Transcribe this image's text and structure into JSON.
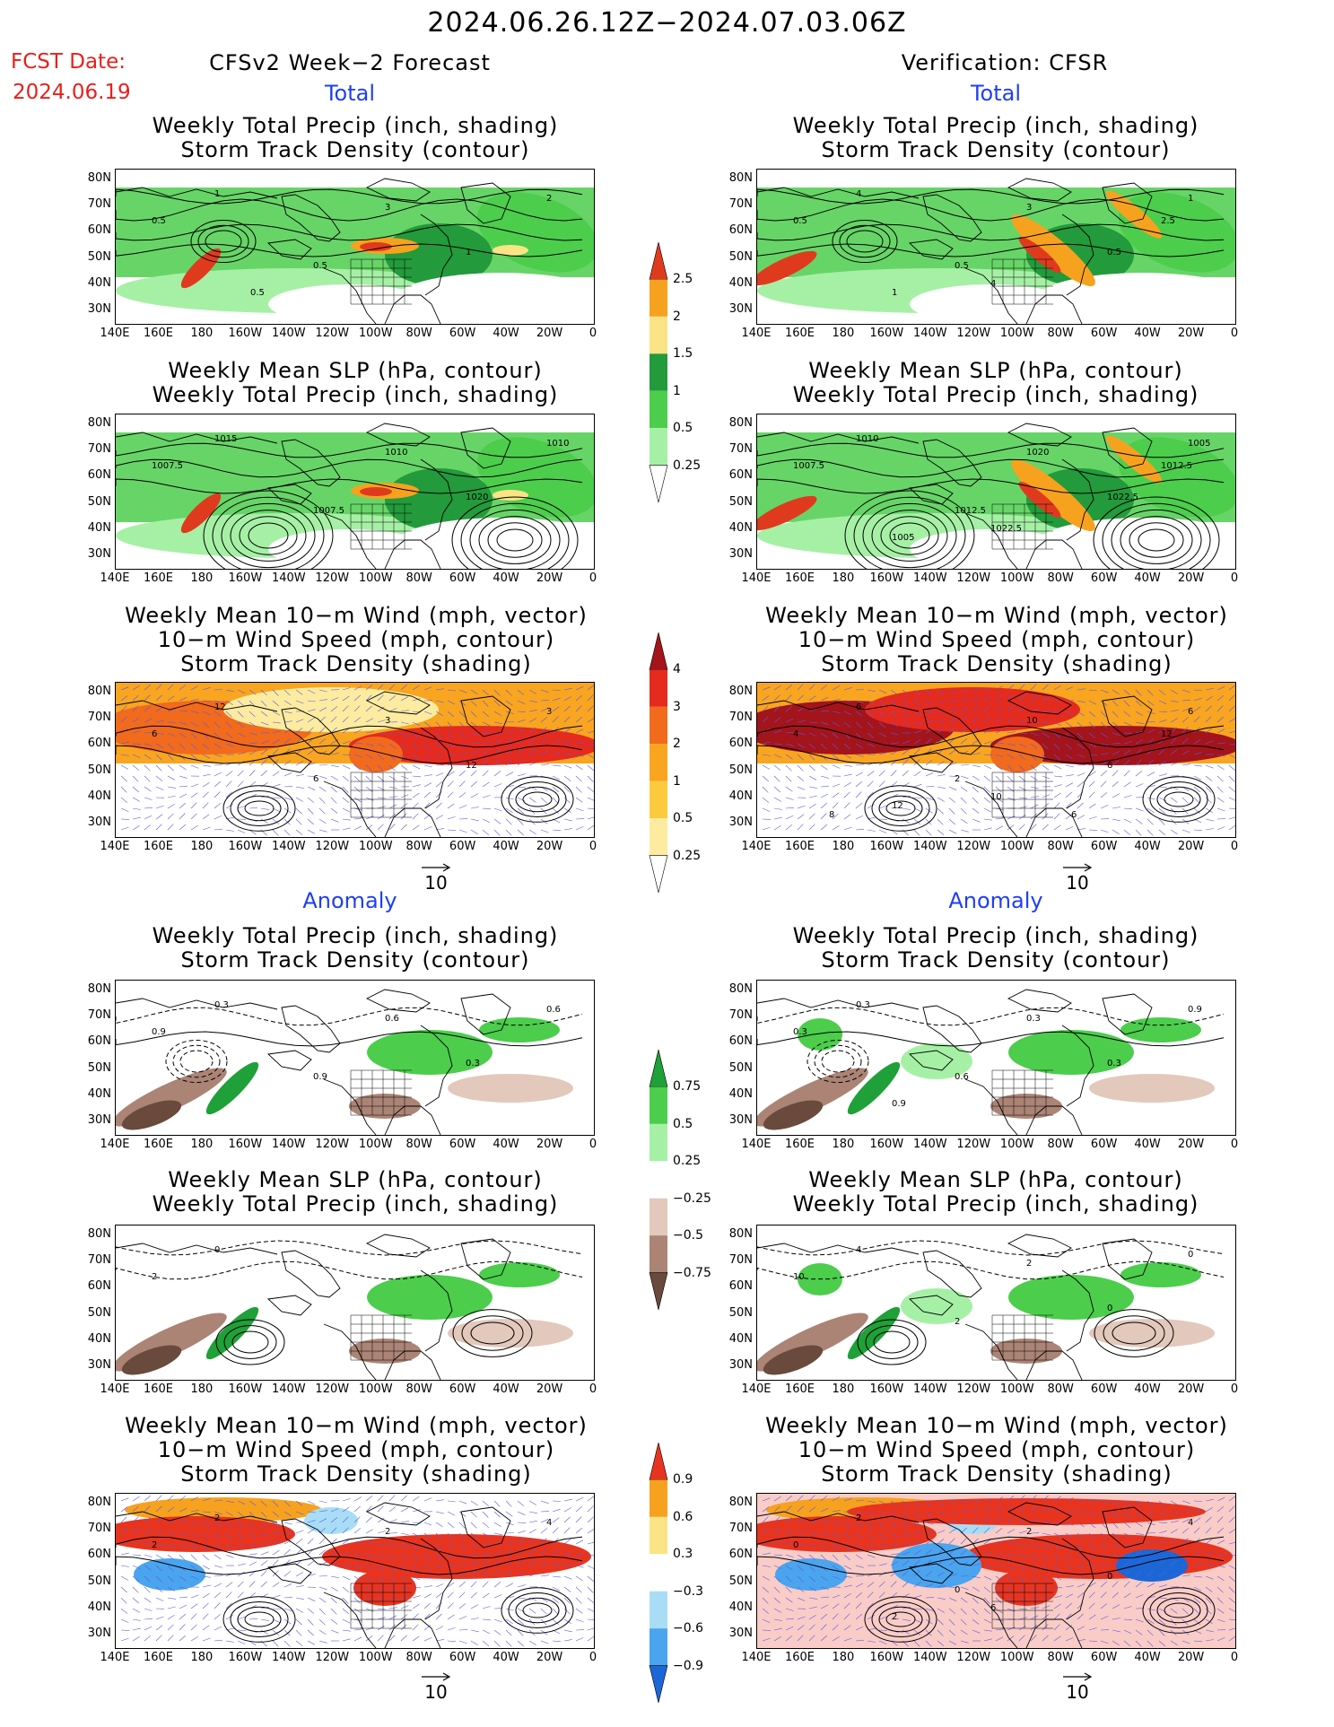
{
  "header": {
    "period": "2024.06.26.12Z−2024.07.03.06Z",
    "fcst_label": "FCST Date:",
    "fcst_date": "2024.06.19",
    "left_title": "CFSv2 Week−2 Forecast",
    "right_title": "Verification: CFSR",
    "total": "Total",
    "anomaly": "Anomaly"
  },
  "axes": {
    "lat": [
      "80N",
      "70N",
      "60N",
      "50N",
      "40N",
      "30N"
    ],
    "lon": [
      "140E",
      "160E",
      "180",
      "160W",
      "140W",
      "120W",
      "100W",
      "80W",
      "60W",
      "40W",
      "20W",
      "0"
    ]
  },
  "panels": {
    "precip_storm": [
      "Weekly Total Precip (inch, shading)",
      "Storm Track Density (contour)"
    ],
    "slp_precip": [
      "Weekly Mean SLP (hPa, contour)",
      "Weekly Total Precip (inch, shading)"
    ],
    "wind": [
      "Weekly Mean 10−m Wind (mph, vector)",
      "10−m Wind Speed (mph, contour)",
      "Storm Track Density (shading)"
    ]
  },
  "vector_ref": "10",
  "colorbars": {
    "precip_total": {
      "labels": [
        "2.5",
        "2",
        "1.5",
        "1",
        "0.5",
        "0.25"
      ],
      "colors": [
        "#e03a1e",
        "#f7a21e",
        "#fbe486",
        "#239a3b",
        "#4ccd4c",
        "#a6f0a6",
        "#ffffff"
      ]
    },
    "wind_total": {
      "labels": [
        "4",
        "3",
        "2",
        "1",
        "0.5",
        "0.25"
      ],
      "colors": [
        "#a3141b",
        "#e52a1e",
        "#f26a1c",
        "#f9a51f",
        "#fbca3f",
        "#fdeca0",
        "#ffffff"
      ]
    },
    "precip_anom": {
      "labels": [
        "0.75",
        "0.5",
        "0.25",
        "−0.25",
        "−0.5",
        "−0.75"
      ],
      "colors": [
        "#20a038",
        "#4ccd4c",
        "#a6f0a6",
        "#ffffff",
        "#e3c8bc",
        "#ab8475",
        "#6a4a3c"
      ]
    },
    "wind_anom": {
      "labels": [
        "0.9",
        "0.6",
        "0.3",
        "−0.3",
        "−0.6",
        "−0.9"
      ],
      "colors": [
        "#e8341e",
        "#f7a21e",
        "#fbe486",
        "#ffffff",
        "#a9ddf6",
        "#4ba4ee",
        "#1c67d6"
      ]
    }
  },
  "contour_labels": {
    "l_p1": [
      "0.5",
      "1",
      "2",
      "3",
      "0.5",
      "1",
      "0.5"
    ],
    "r_p1": [
      "0.5",
      "4",
      "1",
      "3",
      "0.5",
      "0.5",
      "1",
      "4",
      "2.5"
    ],
    "l_p2": [
      "1007.5",
      "1015",
      "1010",
      "1010",
      "1007.5",
      "1020"
    ],
    "r_p2": [
      "1007.5",
      "1010",
      "1005",
      "1020",
      "1012.5",
      "1022.5",
      "1005",
      "1022.5",
      "1012.5"
    ],
    "l_p3": [
      "6",
      "12",
      "3",
      "3",
      "6",
      "12"
    ],
    "r_p3": [
      "4",
      "6",
      "6",
      "10",
      "2",
      "6",
      "12",
      "10",
      "12",
      "8",
      "6"
    ],
    "l_p4": [
      "0.9",
      "0.3",
      "0.6",
      "0.6",
      "0.9",
      "0.3"
    ],
    "r_p4": [
      "0.3",
      "0.3",
      "0.9",
      "0.3",
      "0.6",
      "0.3",
      "0.9"
    ],
    "l_p5": [
      "2",
      "0"
    ],
    "r_p5": [
      "10",
      "4",
      "0",
      "2",
      "2",
      "0"
    ],
    "l_p6": [
      "2",
      "2",
      "4",
      "2"
    ],
    "r_p6": [
      "0",
      "2",
      "4",
      "2",
      "0",
      "0",
      "2",
      "6"
    ]
  }
}
